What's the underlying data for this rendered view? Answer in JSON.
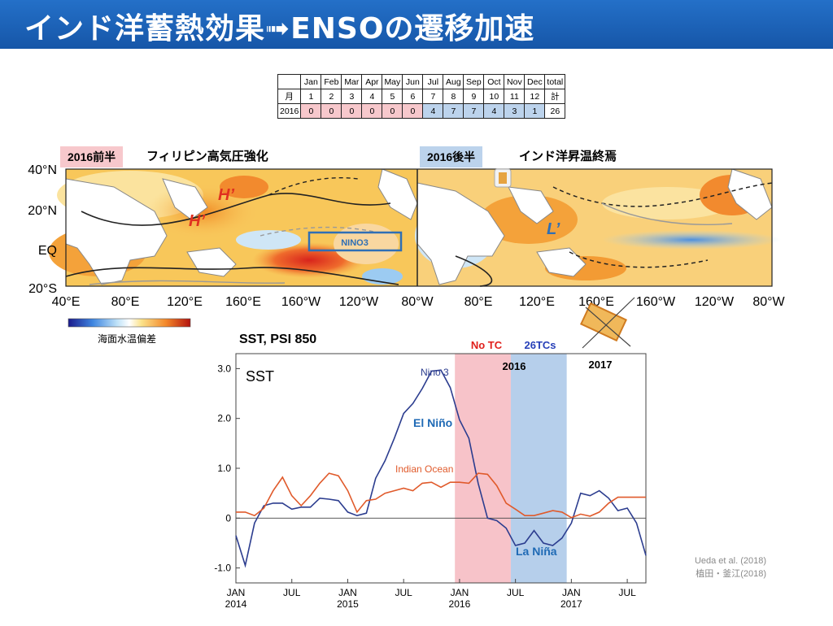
{
  "header": {
    "title": "インド洋蓄熱効果➟ENSOの遷移加速"
  },
  "tc_table": {
    "row_header": [
      "",
      "Jan",
      "Feb",
      "Mar",
      "Apr",
      "May",
      "Jun",
      "Jul",
      "Aug",
      "Sep",
      "Oct",
      "Nov",
      "Dec",
      "total"
    ],
    "row_month": [
      "月",
      "1",
      "2",
      "3",
      "4",
      "5",
      "6",
      "7",
      "8",
      "9",
      "10",
      "11",
      "12",
      "計"
    ],
    "row_2016": [
      "2016",
      "0",
      "0",
      "0",
      "0",
      "0",
      "0",
      "4",
      "7",
      "7",
      "4",
      "3",
      "1",
      "26"
    ]
  },
  "map_panel": {
    "first_half_box": "2016前半",
    "first_half_text": "フィリピン高気圧強化",
    "second_half_box": "2016後半",
    "second_half_text": "インド洋昇温終焉",
    "lat_labels": [
      "40°N",
      "20°N",
      "EQ",
      "20°S"
    ],
    "lon_labels": [
      "40°E",
      "80°E",
      "120°E",
      "160°E",
      "160°W",
      "120°W",
      "80°W",
      "80°E",
      "120°E",
      "160°E",
      "160°W",
      "120°W",
      "80°W"
    ],
    "h1": "H’",
    "h2": "H’",
    "l1": "L’",
    "nino3_box": "NINO3",
    "colorbar_label": "海面水温偏差",
    "colors": {
      "warm": "#f9b233",
      "cool": "#8ec5f0",
      "pink_box": "#f7c8cc",
      "blue_box": "#bcd3ec"
    }
  },
  "chart_data": {
    "type": "line",
    "title": "SST, PSI 850",
    "panel_label": "SST",
    "x_tick_labels": [
      {
        "month": "JAN",
        "year": "2014"
      },
      {
        "month": "JUL",
        "year": ""
      },
      {
        "month": "JAN",
        "year": "2015"
      },
      {
        "month": "JUL",
        "year": ""
      },
      {
        "month": "JAN",
        "year": "2016"
      },
      {
        "month": "JUL",
        "year": ""
      },
      {
        "month": "JAN",
        "year": "2017"
      },
      {
        "month": "JUL",
        "year": ""
      }
    ],
    "y_tick_labels": [
      "3.0",
      "2.0",
      "1.0",
      "0",
      "-1.0"
    ],
    "ylim": [
      -1.3,
      3.3
    ],
    "x": [
      "2014-01",
      "2014-02",
      "2014-03",
      "2014-04",
      "2014-05",
      "2014-06",
      "2014-07",
      "2014-08",
      "2014-09",
      "2014-10",
      "2014-11",
      "2014-12",
      "2015-01",
      "2015-02",
      "2015-03",
      "2015-04",
      "2015-05",
      "2015-06",
      "2015-07",
      "2015-08",
      "2015-09",
      "2015-10",
      "2015-11",
      "2015-12",
      "2016-01",
      "2016-02",
      "2016-03",
      "2016-04",
      "2016-05",
      "2016-06",
      "2016-07",
      "2016-08",
      "2016-09",
      "2016-10",
      "2016-11",
      "2016-12",
      "2017-01",
      "2017-02",
      "2017-03",
      "2017-04",
      "2017-05",
      "2017-06",
      "2017-07",
      "2017-08",
      "2017-09"
    ],
    "series": [
      {
        "name": "Nino 3",
        "color": "#2c3d8f",
        "values": [
          -0.35,
          -0.95,
          -0.1,
          0.25,
          0.3,
          0.3,
          0.18,
          0.22,
          0.22,
          0.4,
          0.38,
          0.35,
          0.12,
          0.05,
          0.1,
          0.8,
          1.15,
          1.6,
          2.1,
          2.3,
          2.6,
          2.95,
          2.97,
          2.62,
          1.97,
          1.6,
          0.7,
          0,
          -0.05,
          -0.2,
          -0.55,
          -0.5,
          -0.25,
          -0.5,
          -0.55,
          -0.4,
          -0.1,
          0.5,
          0.45,
          0.55,
          0.4,
          0.15,
          0.2,
          -0.1,
          -0.75
        ]
      },
      {
        "name": "Indian Ocean",
        "color": "#e05a2b",
        "values": [
          0.12,
          0.12,
          0.05,
          0.2,
          0.55,
          0.82,
          0.45,
          0.25,
          0.45,
          0.7,
          0.9,
          0.85,
          0.55,
          0.12,
          0.35,
          0.38,
          0.5,
          0.55,
          0.6,
          0.55,
          0.7,
          0.72,
          0.62,
          0.72,
          0.72,
          0.7,
          0.9,
          0.88,
          0.65,
          0.3,
          0.18,
          0.05,
          0.05,
          0.1,
          0.15,
          0.12,
          0.01,
          0.08,
          0.04,
          0.12,
          0.3,
          0.42,
          0.42,
          0.42,
          0.42
        ]
      }
    ],
    "shaded": [
      {
        "label": "No TC",
        "color": "#f6b9c0",
        "from": "2016-01",
        "to": "2016-06"
      },
      {
        "label": "26TCs",
        "color": "#a9c7e8",
        "from": "2016-07",
        "to": "2016-12"
      }
    ],
    "annotations": {
      "el_nino": "El Niño",
      "la_nina": "La Niña",
      "year_2016": "2016",
      "year_2017": "2017"
    }
  },
  "citation": {
    "line1": "Ueda et al. (2018)",
    "line2": "植田・釜江(2018)"
  }
}
